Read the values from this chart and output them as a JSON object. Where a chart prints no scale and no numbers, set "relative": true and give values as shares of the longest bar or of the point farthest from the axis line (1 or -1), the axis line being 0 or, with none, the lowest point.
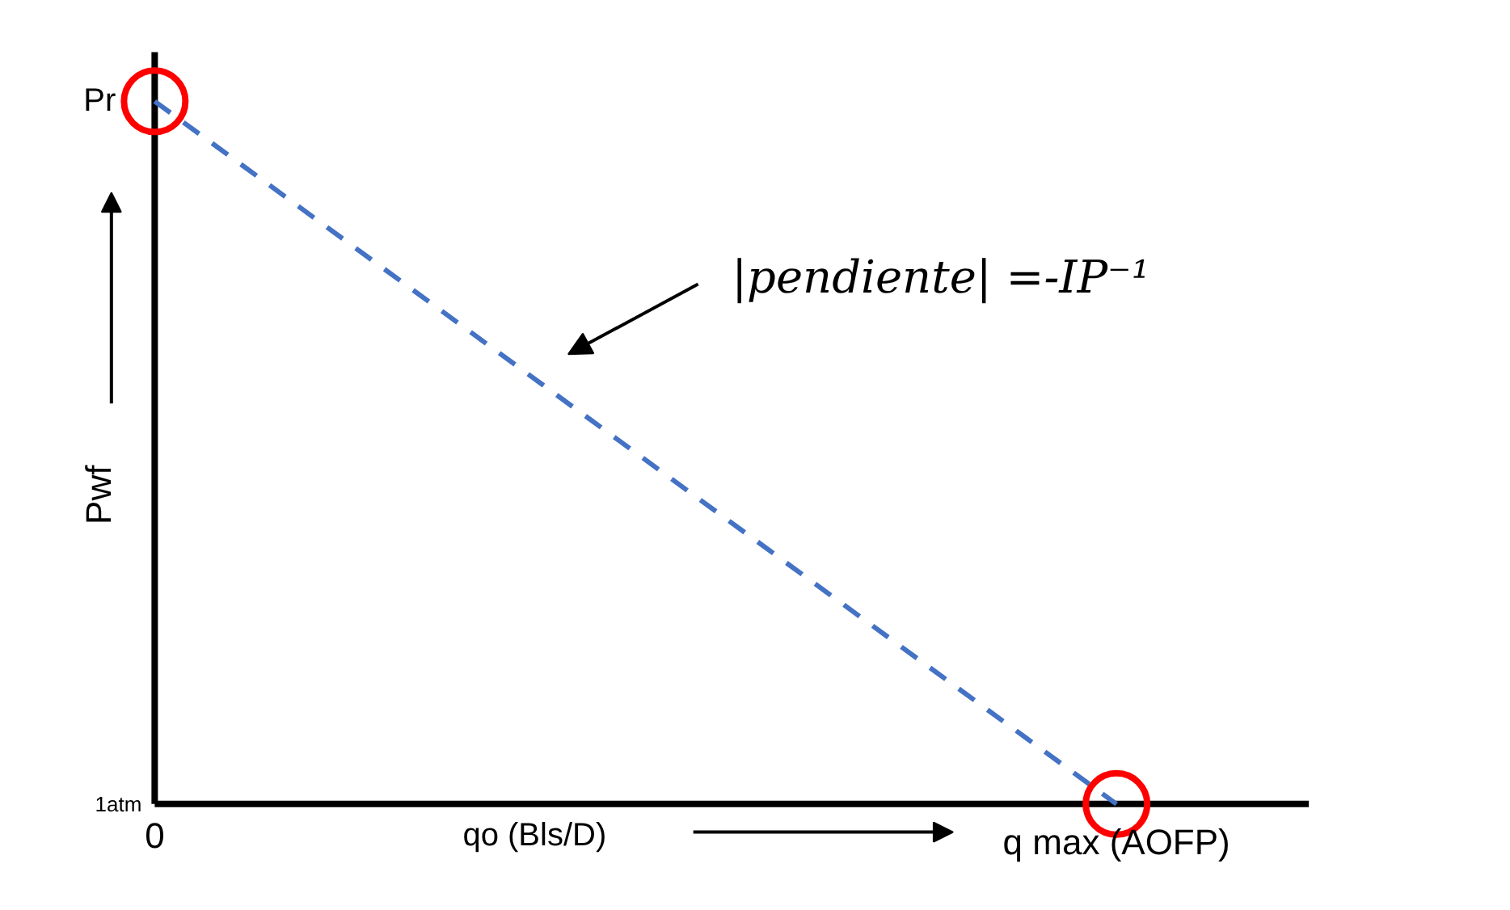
{
  "chart_data": {
    "type": "line",
    "relative": true,
    "categories": [
      "0",
      "q max (AOFP)"
    ],
    "series": [
      {
        "color": "#4472c4",
        "values": [
          1,
          0
        ],
        "line_style": "dashed",
        "marker": "none"
      },
      {
        "type": "scatter",
        "color": "#ff0000",
        "values": [
          1,
          0
        ],
        "marker": "circle"
      }
    ],
    "xlabel": "qo (Bls/D)",
    "ylabel": "Pwf",
    "annotations": [
      {
        "text": "Pr",
        "x": "0",
        "y": 1
      },
      "1atm",
      "|pendiente| =-IP⁻¹"
    ],
    "grid": false
  }
}
